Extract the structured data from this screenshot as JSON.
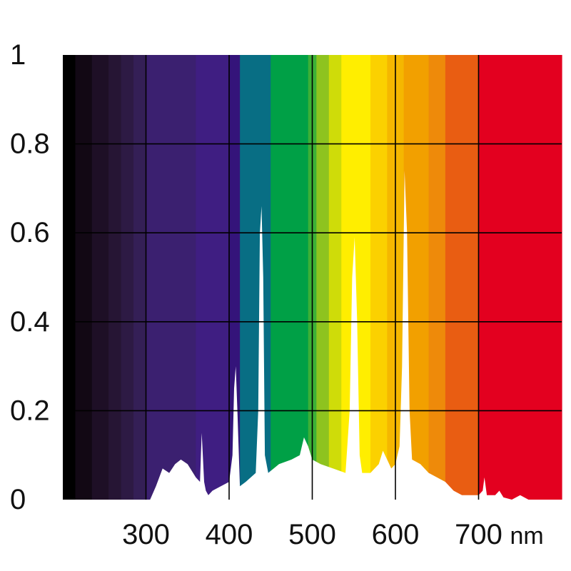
{
  "chart_data": {
    "type": "area",
    "title": "",
    "xlabel": "",
    "ylabel": "",
    "x_unit": "nm",
    "xlim": [
      200,
      800
    ],
    "ylim": [
      0,
      1
    ],
    "x_ticks": [
      300,
      400,
      500,
      600,
      700
    ],
    "y_ticks": [
      {
        "value": 0,
        "label": "0"
      },
      {
        "value": 0.2,
        "label": "0.2"
      },
      {
        "value": 0.4,
        "label": "0.4"
      },
      {
        "value": 0.6,
        "label": "0.6"
      },
      {
        "value": 0.8,
        "label": "0.8"
      },
      {
        "value": 1,
        "label": "1"
      }
    ],
    "grid": true,
    "fill_color": "#ffffff",
    "background_bands": [
      {
        "from": 200,
        "to": 215,
        "color": "#000000"
      },
      {
        "from": 215,
        "to": 235,
        "color": "#120814"
      },
      {
        "from": 235,
        "to": 255,
        "color": "#1e0f26"
      },
      {
        "from": 255,
        "to": 270,
        "color": "#261534"
      },
      {
        "from": 270,
        "to": 285,
        "color": "#2d1a44"
      },
      {
        "from": 285,
        "to": 300,
        "color": "#341f56"
      },
      {
        "from": 300,
        "to": 360,
        "color": "#3b2070"
      },
      {
        "from": 360,
        "to": 400,
        "color": "#3f1e82"
      },
      {
        "from": 400,
        "to": 413,
        "color": "#34147a"
      },
      {
        "from": 413,
        "to": 450,
        "color": "#086e84"
      },
      {
        "from": 450,
        "to": 495,
        "color": "#00a046"
      },
      {
        "from": 495,
        "to": 505,
        "color": "#3cb036"
      },
      {
        "from": 505,
        "to": 520,
        "color": "#8ec31f"
      },
      {
        "from": 520,
        "to": 535,
        "color": "#cfdc09"
      },
      {
        "from": 535,
        "to": 570,
        "color": "#ffee00"
      },
      {
        "from": 570,
        "to": 590,
        "color": "#fbd100"
      },
      {
        "from": 590,
        "to": 610,
        "color": "#f5b700"
      },
      {
        "from": 610,
        "to": 640,
        "color": "#f2a000"
      },
      {
        "from": 640,
        "to": 660,
        "color": "#ee8a0a"
      },
      {
        "from": 660,
        "to": 700,
        "color": "#e95d12"
      },
      {
        "from": 700,
        "to": 800,
        "color": "#e3001f"
      }
    ],
    "series": [
      {
        "x": [
          305,
          312,
          320,
          328,
          335,
          342,
          350,
          360,
          365,
          367,
          370,
          372,
          375,
          380,
          390,
          400,
          404,
          406,
          408,
          410,
          413,
          420,
          432,
          435,
          437,
          439,
          441,
          443,
          447,
          460,
          475,
          485,
          490,
          495,
          500,
          510,
          525,
          540,
          545,
          548,
          551,
          554,
          557,
          560,
          570,
          580,
          585,
          590,
          595,
          600,
          605,
          608,
          611,
          614,
          617,
          620,
          630,
          640,
          650,
          660,
          670,
          680,
          690,
          700,
          705,
          707,
          710,
          720,
          725,
          730,
          740,
          750,
          760,
          770,
          790
        ],
        "y": [
          0.0,
          0.03,
          0.07,
          0.06,
          0.08,
          0.09,
          0.08,
          0.05,
          0.04,
          0.15,
          0.04,
          0.02,
          0.01,
          0.02,
          0.03,
          0.04,
          0.1,
          0.25,
          0.3,
          0.2,
          0.03,
          0.04,
          0.06,
          0.2,
          0.6,
          0.66,
          0.5,
          0.1,
          0.06,
          0.08,
          0.09,
          0.1,
          0.14,
          0.12,
          0.09,
          0.08,
          0.07,
          0.06,
          0.2,
          0.5,
          0.59,
          0.4,
          0.1,
          0.06,
          0.06,
          0.08,
          0.11,
          0.09,
          0.07,
          0.08,
          0.12,
          0.3,
          0.74,
          0.6,
          0.2,
          0.09,
          0.08,
          0.06,
          0.05,
          0.04,
          0.02,
          0.01,
          0.01,
          0.01,
          0.02,
          0.05,
          0.01,
          0.01,
          0.02,
          0.005,
          0.0,
          0.01,
          0.0,
          0.0,
          0.0
        ]
      }
    ]
  }
}
